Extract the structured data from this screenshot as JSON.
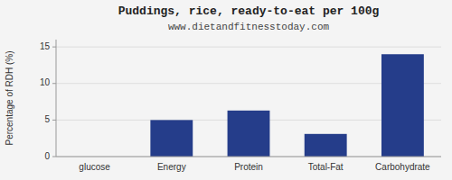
{
  "chart_data": {
    "type": "bar",
    "title": "Puddings, rice, ready-to-eat per 100g",
    "subtitle": "www.dietandfitnesstoday.com",
    "ylabel": "Percentage of RDH (%)",
    "categories": [
      "glucose",
      "Energy",
      "Protein",
      "Total-Fat",
      "Carbohydrate"
    ],
    "values": [
      0,
      5.0,
      6.3,
      3.1,
      14.0
    ],
    "color": "#253d8a",
    "ylim": [
      0,
      16
    ],
    "yticks": [
      0,
      5,
      10,
      15
    ],
    "grid": true
  }
}
